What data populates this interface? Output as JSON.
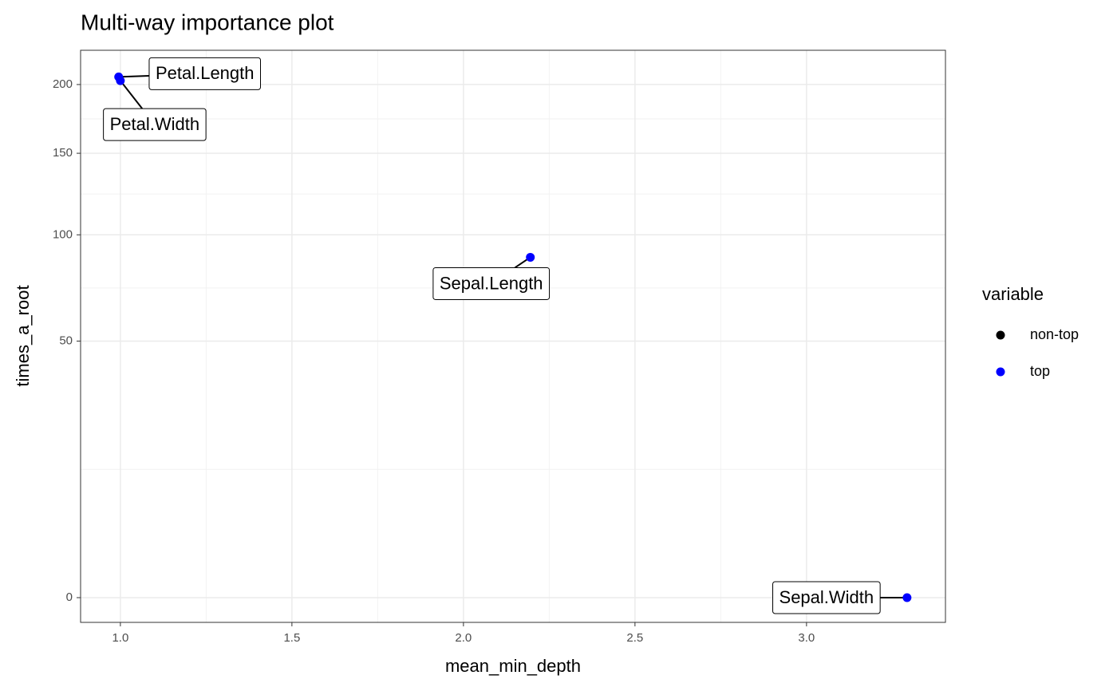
{
  "chart_data": {
    "type": "scatter",
    "title": "Multi-way importance plot",
    "x_label": "mean_min_depth",
    "y_label": "times_a_root",
    "xlim": [
      0.884,
      3.405
    ],
    "xticks": [
      1.0,
      1.5,
      2.0,
      2.5,
      3.0
    ],
    "ylim": [
      -0.465,
      227.6
    ],
    "yticks": [
      0,
      50,
      100,
      150,
      200
    ],
    "y_scale": "sqrt",
    "grid": true,
    "legend_title": "variable",
    "legend_position": "right",
    "series": [
      {
        "name": "non-top",
        "color": "#000000",
        "x": [],
        "values": [],
        "labels": []
      },
      {
        "name": "top",
        "color": "#0000ff",
        "x": [
          0.995,
          1.0,
          2.195,
          3.293
        ],
        "values": [
          206,
          203,
          88,
          0
        ],
        "labels": [
          "Petal.Length",
          "Petal.Width",
          "Sepal.Length",
          "Sepal.Width"
        ]
      }
    ]
  }
}
